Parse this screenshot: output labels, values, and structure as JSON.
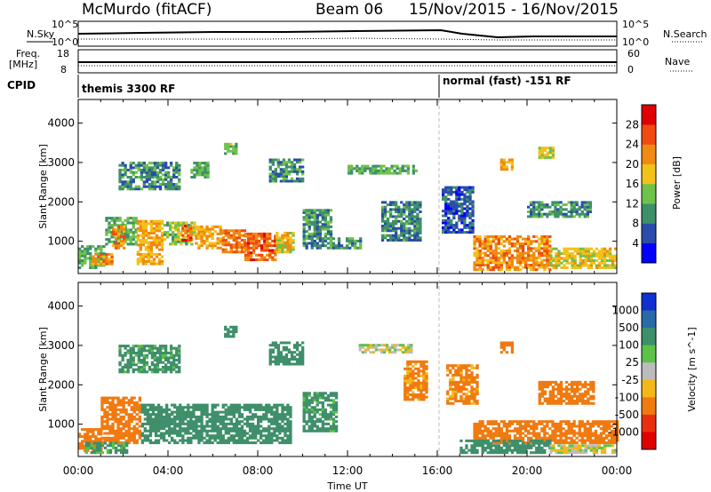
{
  "header": {
    "station": "McMurdo (fitACF)",
    "beam": "Beam 06",
    "date_range": "15/Nov/2015 - 16/Nov/2015"
  },
  "summary_panels": {
    "nsky_label": "N.Sky",
    "nsearch_label": "N.Search",
    "nsky_ticks": [
      "10^5",
      "10^0"
    ],
    "nsearch_ticks": [
      "10^5",
      "10^0"
    ],
    "freq_label_1": "Freq.",
    "freq_label_2": "[MHz]",
    "freq_ticks": [
      "18",
      "8"
    ],
    "nave_label": "Nave",
    "nave_ticks": [
      "60",
      "0"
    ],
    "cpid_label": "CPID",
    "cpid_segments": [
      {
        "label": "themis 3300 RF",
        "start_hour": 0,
        "end_hour": 16
      },
      {
        "label": "normal (fast) -151 RF",
        "start_hour": 16,
        "end_hour": 24
      }
    ]
  },
  "chart_data": [
    {
      "type": "heatmap",
      "name": "power",
      "ylabel": "Slant Range [km]",
      "xlabel": "",
      "ylim": [
        180,
        4600
      ],
      "xlim": [
        0,
        24
      ],
      "y_ticks": [
        1000,
        2000,
        3000,
        4000
      ],
      "colorbar": {
        "label": "Power [dB]",
        "range": [
          0,
          32
        ],
        "tick_values": [
          4,
          8,
          12,
          16,
          20,
          24,
          28
        ],
        "colors": [
          "#0000ff",
          "#2a4caa",
          "#3e8f6a",
          "#6ec24a",
          "#f2c11a",
          "#f08a10",
          "#f04a10",
          "#e00000"
        ]
      },
      "regions": [
        {
          "t0": 0.0,
          "t1": 1.2,
          "r0": 300,
          "r1": 900,
          "v": 12
        },
        {
          "t0": 0.6,
          "t1": 1.5,
          "r0": 400,
          "r1": 700,
          "v": 22
        },
        {
          "t0": 1.2,
          "t1": 2.6,
          "r0": 900,
          "r1": 1600,
          "v": 12
        },
        {
          "t0": 1.5,
          "t1": 2.0,
          "r0": 800,
          "r1": 1400,
          "v": 22
        },
        {
          "t0": 2.6,
          "t1": 3.8,
          "r0": 400,
          "r1": 1500,
          "v": 20
        },
        {
          "t0": 3.8,
          "t1": 5.2,
          "r0": 900,
          "r1": 1500,
          "v": 15
        },
        {
          "t0": 4.6,
          "t1": 5.0,
          "r0": 1000,
          "r1": 1400,
          "v": 25
        },
        {
          "t0": 5.2,
          "t1": 6.4,
          "r0": 800,
          "r1": 1400,
          "v": 20
        },
        {
          "t0": 6.4,
          "t1": 7.4,
          "r0": 700,
          "r1": 1300,
          "v": 24
        },
        {
          "t0": 7.4,
          "t1": 8.8,
          "r0": 500,
          "r1": 1200,
          "v": 25
        },
        {
          "t0": 8.8,
          "t1": 9.6,
          "r0": 700,
          "r1": 1200,
          "v": 18
        },
        {
          "t0": 1.8,
          "t1": 4.5,
          "r0": 2300,
          "r1": 3000,
          "v": 10
        },
        {
          "t0": 5.0,
          "t1": 5.8,
          "r0": 2600,
          "r1": 3000,
          "v": 12
        },
        {
          "t0": 6.5,
          "t1": 7.0,
          "r0": 3200,
          "r1": 3500,
          "v": 14
        },
        {
          "t0": 8.5,
          "t1": 10.0,
          "r0": 2500,
          "r1": 3100,
          "v": 10
        },
        {
          "t0": 10.0,
          "t1": 11.2,
          "r0": 800,
          "r1": 1800,
          "v": 10
        },
        {
          "t0": 11.2,
          "t1": 12.6,
          "r0": 800,
          "r1": 1100,
          "v": 11
        },
        {
          "t0": 12.0,
          "t1": 15.0,
          "r0": 2700,
          "r1": 2900,
          "v": 12
        },
        {
          "t0": 13.5,
          "t1": 15.2,
          "r0": 1000,
          "r1": 2000,
          "v": 9
        },
        {
          "t0": 16.2,
          "t1": 17.6,
          "r0": 1200,
          "r1": 2400,
          "v": 6
        },
        {
          "t0": 17.6,
          "t1": 21.0,
          "r0": 250,
          "r1": 1100,
          "v": 22
        },
        {
          "t0": 21.0,
          "t1": 24.0,
          "r0": 300,
          "r1": 800,
          "v": 18
        },
        {
          "t0": 18.8,
          "t1": 19.4,
          "r0": 2800,
          "r1": 3100,
          "v": 20
        },
        {
          "t0": 20.5,
          "t1": 21.2,
          "r0": 3100,
          "r1": 3400,
          "v": 16
        },
        {
          "t0": 20.0,
          "t1": 22.8,
          "r0": 1600,
          "r1": 2000,
          "v": 10
        }
      ]
    },
    {
      "type": "heatmap",
      "name": "velocity",
      "ylabel": "Slant Range [km]",
      "xlabel": "Time UT",
      "ylim": [
        180,
        4600
      ],
      "xlim": [
        0,
        24
      ],
      "y_ticks": [
        1000,
        2000,
        3000,
        4000
      ],
      "x_tick_labels": [
        "00:00",
        "04:00",
        "08:00",
        "12:00",
        "16:00",
        "20:00",
        "00:00"
      ],
      "x_tick_hours": [
        0,
        4,
        8,
        12,
        16,
        20,
        24
      ],
      "colorbar": {
        "label": "Velocity [m s^-1]",
        "tick_labels": [
          "1000",
          "500",
          "100",
          "25",
          "-25",
          "-100",
          "-500",
          "-1000"
        ],
        "colors": [
          "#1030d0",
          "#2a6aa8",
          "#3e8f6a",
          "#5cc248",
          "#bcbcbc",
          "#f2b81a",
          "#f07a10",
          "#e83010",
          "#e00000"
        ]
      },
      "regions": [
        {
          "t0": 0.0,
          "t1": 1.0,
          "r0": 300,
          "r1": 900,
          "v": -200
        },
        {
          "t0": 1.0,
          "t1": 2.8,
          "r0": 500,
          "r1": 1700,
          "v": -300
        },
        {
          "t0": 0.3,
          "t1": 2.2,
          "r0": 250,
          "r1": 500,
          "v": 150
        },
        {
          "t0": 2.8,
          "t1": 9.4,
          "r0": 500,
          "r1": 1500,
          "v": 200
        },
        {
          "t0": 6.5,
          "t1": 7.0,
          "r0": 3200,
          "r1": 3500,
          "v": 400
        },
        {
          "t0": 1.8,
          "t1": 4.5,
          "r0": 2300,
          "r1": 3000,
          "v": 150
        },
        {
          "t0": 8.5,
          "t1": 10.0,
          "r0": 2500,
          "r1": 3100,
          "v": 200
        },
        {
          "t0": 10.0,
          "t1": 11.5,
          "r0": 800,
          "r1": 1800,
          "v": 150
        },
        {
          "t0": 12.5,
          "t1": 14.8,
          "r0": 2800,
          "r1": 3000,
          "v": 0
        },
        {
          "t0": 14.5,
          "t1": 15.5,
          "r0": 1600,
          "r1": 2600,
          "v": -150
        },
        {
          "t0": 16.4,
          "t1": 17.8,
          "r0": 1500,
          "r1": 2500,
          "v": -150
        },
        {
          "t0": 17.6,
          "t1": 24.0,
          "r0": 500,
          "r1": 1100,
          "v": -300
        },
        {
          "t0": 17.0,
          "t1": 21.0,
          "r0": 250,
          "r1": 600,
          "v": 200
        },
        {
          "t0": 21.0,
          "t1": 24.0,
          "r0": 250,
          "r1": 450,
          "v": 0
        },
        {
          "t0": 20.5,
          "t1": 23.0,
          "r0": 1500,
          "r1": 2100,
          "v": -300
        },
        {
          "t0": 18.8,
          "t1": 19.4,
          "r0": 2800,
          "r1": 3100,
          "v": -200
        }
      ]
    }
  ]
}
